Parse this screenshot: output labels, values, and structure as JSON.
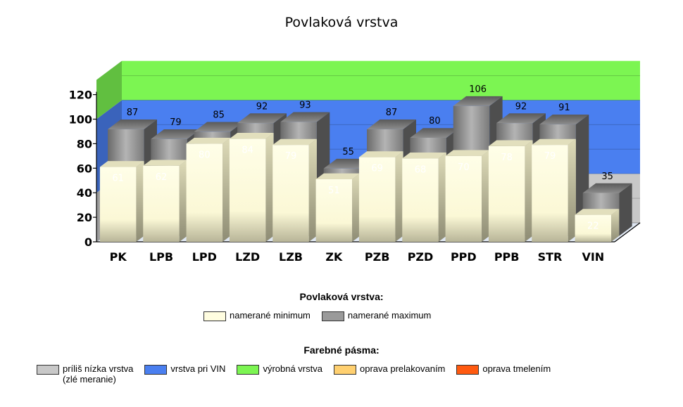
{
  "chart_data": {
    "type": "bar",
    "title": "Povlaková vrstva",
    "categories": [
      "PK",
      "LPB",
      "LPD",
      "LZD",
      "LZB",
      "ZK",
      "PZB",
      "PZD",
      "PPD",
      "PPB",
      "STR",
      "VIN"
    ],
    "series": [
      {
        "name": "namerané minimum",
        "values": [
          61,
          62,
          80,
          84,
          79,
          51,
          69,
          68,
          70,
          78,
          79,
          22
        ]
      },
      {
        "name": "namerané maximum",
        "values": [
          87,
          79,
          85,
          92,
          93,
          55,
          87,
          80,
          106,
          92,
          91,
          35
        ]
      }
    ],
    "ylim": [
      0,
      120
    ],
    "yticks": [
      0,
      20,
      40,
      60,
      80,
      100,
      120
    ],
    "bands": [
      {
        "name": "príliš nízka vrstva (zlé meranie)",
        "from": 0,
        "to": 40,
        "color": "#c8c8c8"
      },
      {
        "name": "vrstva pri VIN",
        "from": 40,
        "to": 100,
        "color": "#4a7ff0"
      },
      {
        "name": "výrobná vrstva",
        "from": 100,
        "to": 140,
        "color": "#7cf552"
      }
    ],
    "colors": {
      "minimum": "#fffde0",
      "maximum": "#8a8a8a"
    },
    "xlabel": "",
    "ylabel": "",
    "legend_placement": "bottom"
  },
  "legend1": {
    "title": "Povlaková vrstva:",
    "items": [
      {
        "label": "namerané minimum",
        "color": "#fffde0"
      },
      {
        "label": "namerané maximum",
        "color": "#9a9a9a"
      }
    ]
  },
  "legend2": {
    "title": "Farebné pásma:",
    "items": [
      {
        "label": "príliš nízka vrstva\n(zlé meranie)",
        "color": "#c8c8c8"
      },
      {
        "label": "vrstva pri VIN",
        "color": "#4a7ff0"
      },
      {
        "label": "výrobná vrstva",
        "color": "#7cf552"
      },
      {
        "label": "oprava prelakovaním",
        "color": "#ffd070"
      },
      {
        "label": "oprava tmelením",
        "color": "#ff5a10"
      }
    ]
  }
}
